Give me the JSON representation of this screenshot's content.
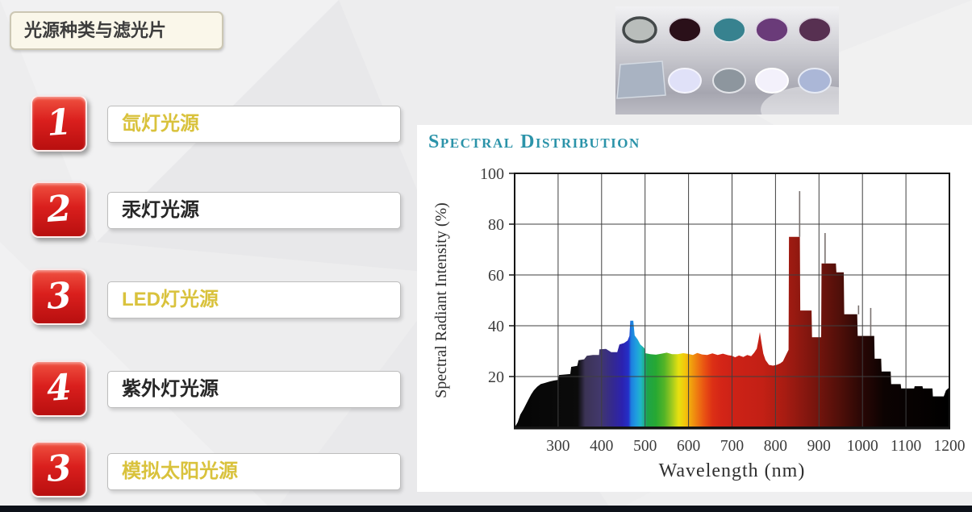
{
  "slide": {
    "title": "光源种类与滤光片",
    "background_color": "#ededee",
    "footer_bar_color": "#0d1119"
  },
  "list": {
    "items": [
      {
        "number": "1",
        "label": "氙灯光源",
        "label_color": "#d9c23c"
      },
      {
        "number": "2",
        "label": "汞灯光源",
        "label_color": "#262626"
      },
      {
        "number": "3",
        "label": "LED灯光源",
        "label_color": "#d9c23c"
      },
      {
        "number": "4",
        "label": "紫外灯光源",
        "label_color": "#262626"
      },
      {
        "number": "3",
        "label": "模拟太阳光源",
        "label_color": "#d9c23c"
      }
    ],
    "badge_color_top": "#ef5140",
    "badge_color_bottom": "#b80f0f"
  },
  "filters_image": {
    "background_top": "#f1f1f3",
    "background_bottom": "#a6a6b0",
    "top_row": [
      {
        "name": "gray-ringed-filter",
        "color": "#b9bdbb",
        "ring": "#44494a"
      },
      {
        "name": "dark-maroon-filter",
        "color": "#2a1019",
        "ring": "#d8d2da"
      },
      {
        "name": "teal-filter",
        "color": "#37828f",
        "ring": "#dde2e6"
      },
      {
        "name": "purple-filter",
        "color": "#6a3b79",
        "ring": "#ddd6e2"
      },
      {
        "name": "plum-filter",
        "color": "#573051",
        "ring": "#d9d2dc"
      }
    ],
    "bottom_row": [
      {
        "name": "square-gray-filter",
        "color": "#a9b3c2",
        "ring": "#d4dae2"
      },
      {
        "name": "pale-lavender-filter",
        "color": "#e0e1f8",
        "ring": "#f4f4fc"
      },
      {
        "name": "gray-round-filter",
        "color": "#8d969e",
        "ring": "#e2e4e8"
      },
      {
        "name": "white-filter",
        "color": "#f3f1fb",
        "ring": "#ffffff"
      },
      {
        "name": "light-blue-filter",
        "color": "#abb7d7",
        "ring": "#e6eaf4"
      }
    ]
  },
  "chart_data": {
    "type": "area",
    "title": "Spectral Distribution",
    "title_color": "#2b93a9",
    "xlabel": "Wavelength (nm)",
    "ylabel": "Spectral Radiant Intensity (%)",
    "xlim": [
      200,
      1200
    ],
    "ylim": [
      0,
      100
    ],
    "x_ticks": [
      300,
      400,
      500,
      600,
      700,
      800,
      900,
      1000,
      1100,
      1200
    ],
    "y_ticks": [
      20,
      40,
      60,
      80,
      100
    ],
    "grid": true,
    "legend": "none",
    "curve": [
      [
        200,
        0
      ],
      [
        207,
        2
      ],
      [
        213,
        5
      ],
      [
        220,
        7
      ],
      [
        226,
        9
      ],
      [
        232,
        11
      ],
      [
        238,
        13
      ],
      [
        244,
        14.5
      ],
      [
        252,
        16
      ],
      [
        260,
        17
      ],
      [
        270,
        17.5
      ],
      [
        280,
        18
      ],
      [
        290,
        18.4
      ],
      [
        300,
        18.7
      ],
      [
        302,
        20.6
      ],
      [
        315,
        20.8
      ],
      [
        328,
        21
      ],
      [
        330,
        23.8
      ],
      [
        344,
        24.2
      ],
      [
        347,
        26.4
      ],
      [
        360,
        26.8
      ],
      [
        366,
        28.2
      ],
      [
        380,
        28.5
      ],
      [
        394,
        28.5
      ],
      [
        395,
        30.7
      ],
      [
        410,
        30.9
      ],
      [
        422,
        29.6
      ],
      [
        436,
        29.6
      ],
      [
        441,
        32.6
      ],
      [
        452,
        33.2
      ],
      [
        460,
        34.2
      ],
      [
        464,
        36
      ],
      [
        466,
        42
      ],
      [
        473,
        42
      ],
      [
        476,
        36.2
      ],
      [
        483,
        34.6
      ],
      [
        489,
        32.6
      ],
      [
        496,
        31.6
      ],
      [
        499,
        31
      ],
      [
        500,
        29.2
      ],
      [
        512,
        28.8
      ],
      [
        525,
        28.6
      ],
      [
        538,
        29
      ],
      [
        550,
        29.4
      ],
      [
        562,
        28.8
      ],
      [
        575,
        28.8
      ],
      [
        588,
        29.2
      ],
      [
        600,
        28.9
      ],
      [
        610,
        28.5
      ],
      [
        620,
        29.3
      ],
      [
        631,
        28.7
      ],
      [
        643,
        28.5
      ],
      [
        655,
        29.1
      ],
      [
        667,
        28.5
      ],
      [
        679,
        29
      ],
      [
        691,
        28.4
      ],
      [
        700,
        28.2
      ],
      [
        707,
        27.6
      ],
      [
        716,
        28.3
      ],
      [
        726,
        27.7
      ],
      [
        735,
        28.5
      ],
      [
        744,
        28
      ],
      [
        751,
        29.4
      ],
      [
        757,
        31
      ],
      [
        761,
        34.5
      ],
      [
        764,
        37.5
      ],
      [
        768,
        33
      ],
      [
        772,
        29
      ],
      [
        777,
        26.5
      ],
      [
        785,
        24.6
      ],
      [
        794,
        24.3
      ],
      [
        803,
        24.6
      ],
      [
        811,
        25.2
      ],
      [
        817,
        26
      ],
      [
        821,
        27.4
      ],
      [
        825,
        28.8
      ],
      [
        830,
        30.5
      ],
      [
        831,
        75
      ],
      [
        856,
        75
      ],
      [
        857,
        46
      ],
      [
        883,
        46
      ],
      [
        884,
        35.5
      ],
      [
        905,
        35.5
      ],
      [
        906,
        64.5
      ],
      [
        939,
        64.5
      ],
      [
        940,
        61
      ],
      [
        957,
        61
      ],
      [
        958,
        44.5
      ],
      [
        988,
        44.5
      ],
      [
        989,
        36
      ],
      [
        1027,
        36
      ],
      [
        1028,
        27
      ],
      [
        1043,
        27
      ],
      [
        1044,
        22
      ],
      [
        1065,
        22
      ],
      [
        1066,
        17
      ],
      [
        1088,
        17
      ],
      [
        1089,
        15.3
      ],
      [
        1119,
        15.3
      ],
      [
        1120,
        16.2
      ],
      [
        1138,
        16.2
      ],
      [
        1139,
        15.3
      ],
      [
        1161,
        15.3
      ],
      [
        1162,
        12.2
      ],
      [
        1187,
        12.2
      ],
      [
        1192,
        14.5
      ],
      [
        1200,
        15.8
      ]
    ],
    "line_spikes": [
      [
        855.5,
        75,
        93
      ],
      [
        914,
        64.5,
        76.5
      ],
      [
        991,
        44.5,
        48
      ],
      [
        1019,
        36,
        47
      ]
    ],
    "gradient_stops": [
      [
        200,
        "#050505"
      ],
      [
        345,
        "#0b0b0b"
      ],
      [
        362,
        "#3b3355"
      ],
      [
        395,
        "#42386b"
      ],
      [
        425,
        "#34298f"
      ],
      [
        448,
        "#2b22b0"
      ],
      [
        462,
        "#2430c8"
      ],
      [
        468,
        "#1d7ede"
      ],
      [
        479,
        "#1f9be0"
      ],
      [
        490,
        "#20b6c9"
      ],
      [
        499,
        "#1fae84"
      ],
      [
        505,
        "#1ea449"
      ],
      [
        525,
        "#27a832"
      ],
      [
        545,
        "#55b427"
      ],
      [
        562,
        "#9fca1f"
      ],
      [
        577,
        "#e6e110"
      ],
      [
        592,
        "#f3c60c"
      ],
      [
        607,
        "#f19d0e"
      ],
      [
        622,
        "#ee7511"
      ],
      [
        638,
        "#e84f13"
      ],
      [
        655,
        "#dc3015"
      ],
      [
        675,
        "#d42517"
      ],
      [
        700,
        "#cd2217"
      ],
      [
        770,
        "#c32015"
      ],
      [
        820,
        "#a81c12"
      ],
      [
        860,
        "#8c1810"
      ],
      [
        910,
        "#6b130c"
      ],
      [
        950,
        "#4e0f09"
      ],
      [
        1000,
        "#290705"
      ],
      [
        1050,
        "#0c0302"
      ],
      [
        1200,
        "#000000"
      ]
    ],
    "grid_color": "#3f3f3f",
    "axis_color": "#141414",
    "tick_label_color": "#3c3c3c"
  }
}
